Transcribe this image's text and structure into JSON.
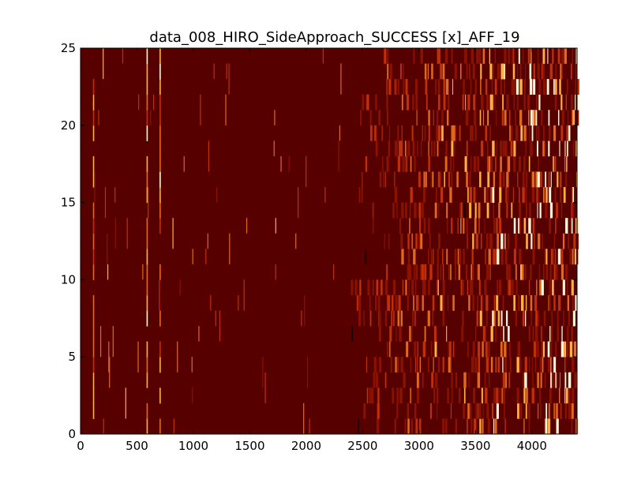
{
  "chart_data": {
    "type": "heatmap",
    "title": "data_008_HIRO_SideApproach_SUCCESS [x]_AFF_19",
    "xlabel": "",
    "ylabel": "",
    "xlim": [
      0,
      4400
    ],
    "ylim": [
      0,
      25
    ],
    "x_ticks": [
      0,
      500,
      1000,
      1500,
      2000,
      2500,
      3000,
      3500,
      4000
    ],
    "x_tick_labels": [
      "0",
      "500",
      "1000",
      "1500",
      "2000",
      "2500",
      "3000",
      "3500",
      "4000"
    ],
    "y_ticks": [
      0,
      5,
      10,
      15,
      20,
      25
    ],
    "y_tick_labels": [
      "0",
      "5",
      "10",
      "15",
      "20",
      "25"
    ],
    "rows": 25,
    "colormap": "afmhot",
    "background_color": "#570000",
    "grid": false,
    "colors": {
      "low": "#570000",
      "mid": "#d04a10",
      "high": "#fff8d8",
      "dark": "#1a0000"
    },
    "persistent_columns": [
      {
        "x": 110,
        "intensity": 0.85
      },
      {
        "x": 585,
        "intensity": 0.95
      },
      {
        "x": 700,
        "intensity": 0.9
      }
    ],
    "dense_region_start": 2350,
    "dense_region_end": 4400
  }
}
